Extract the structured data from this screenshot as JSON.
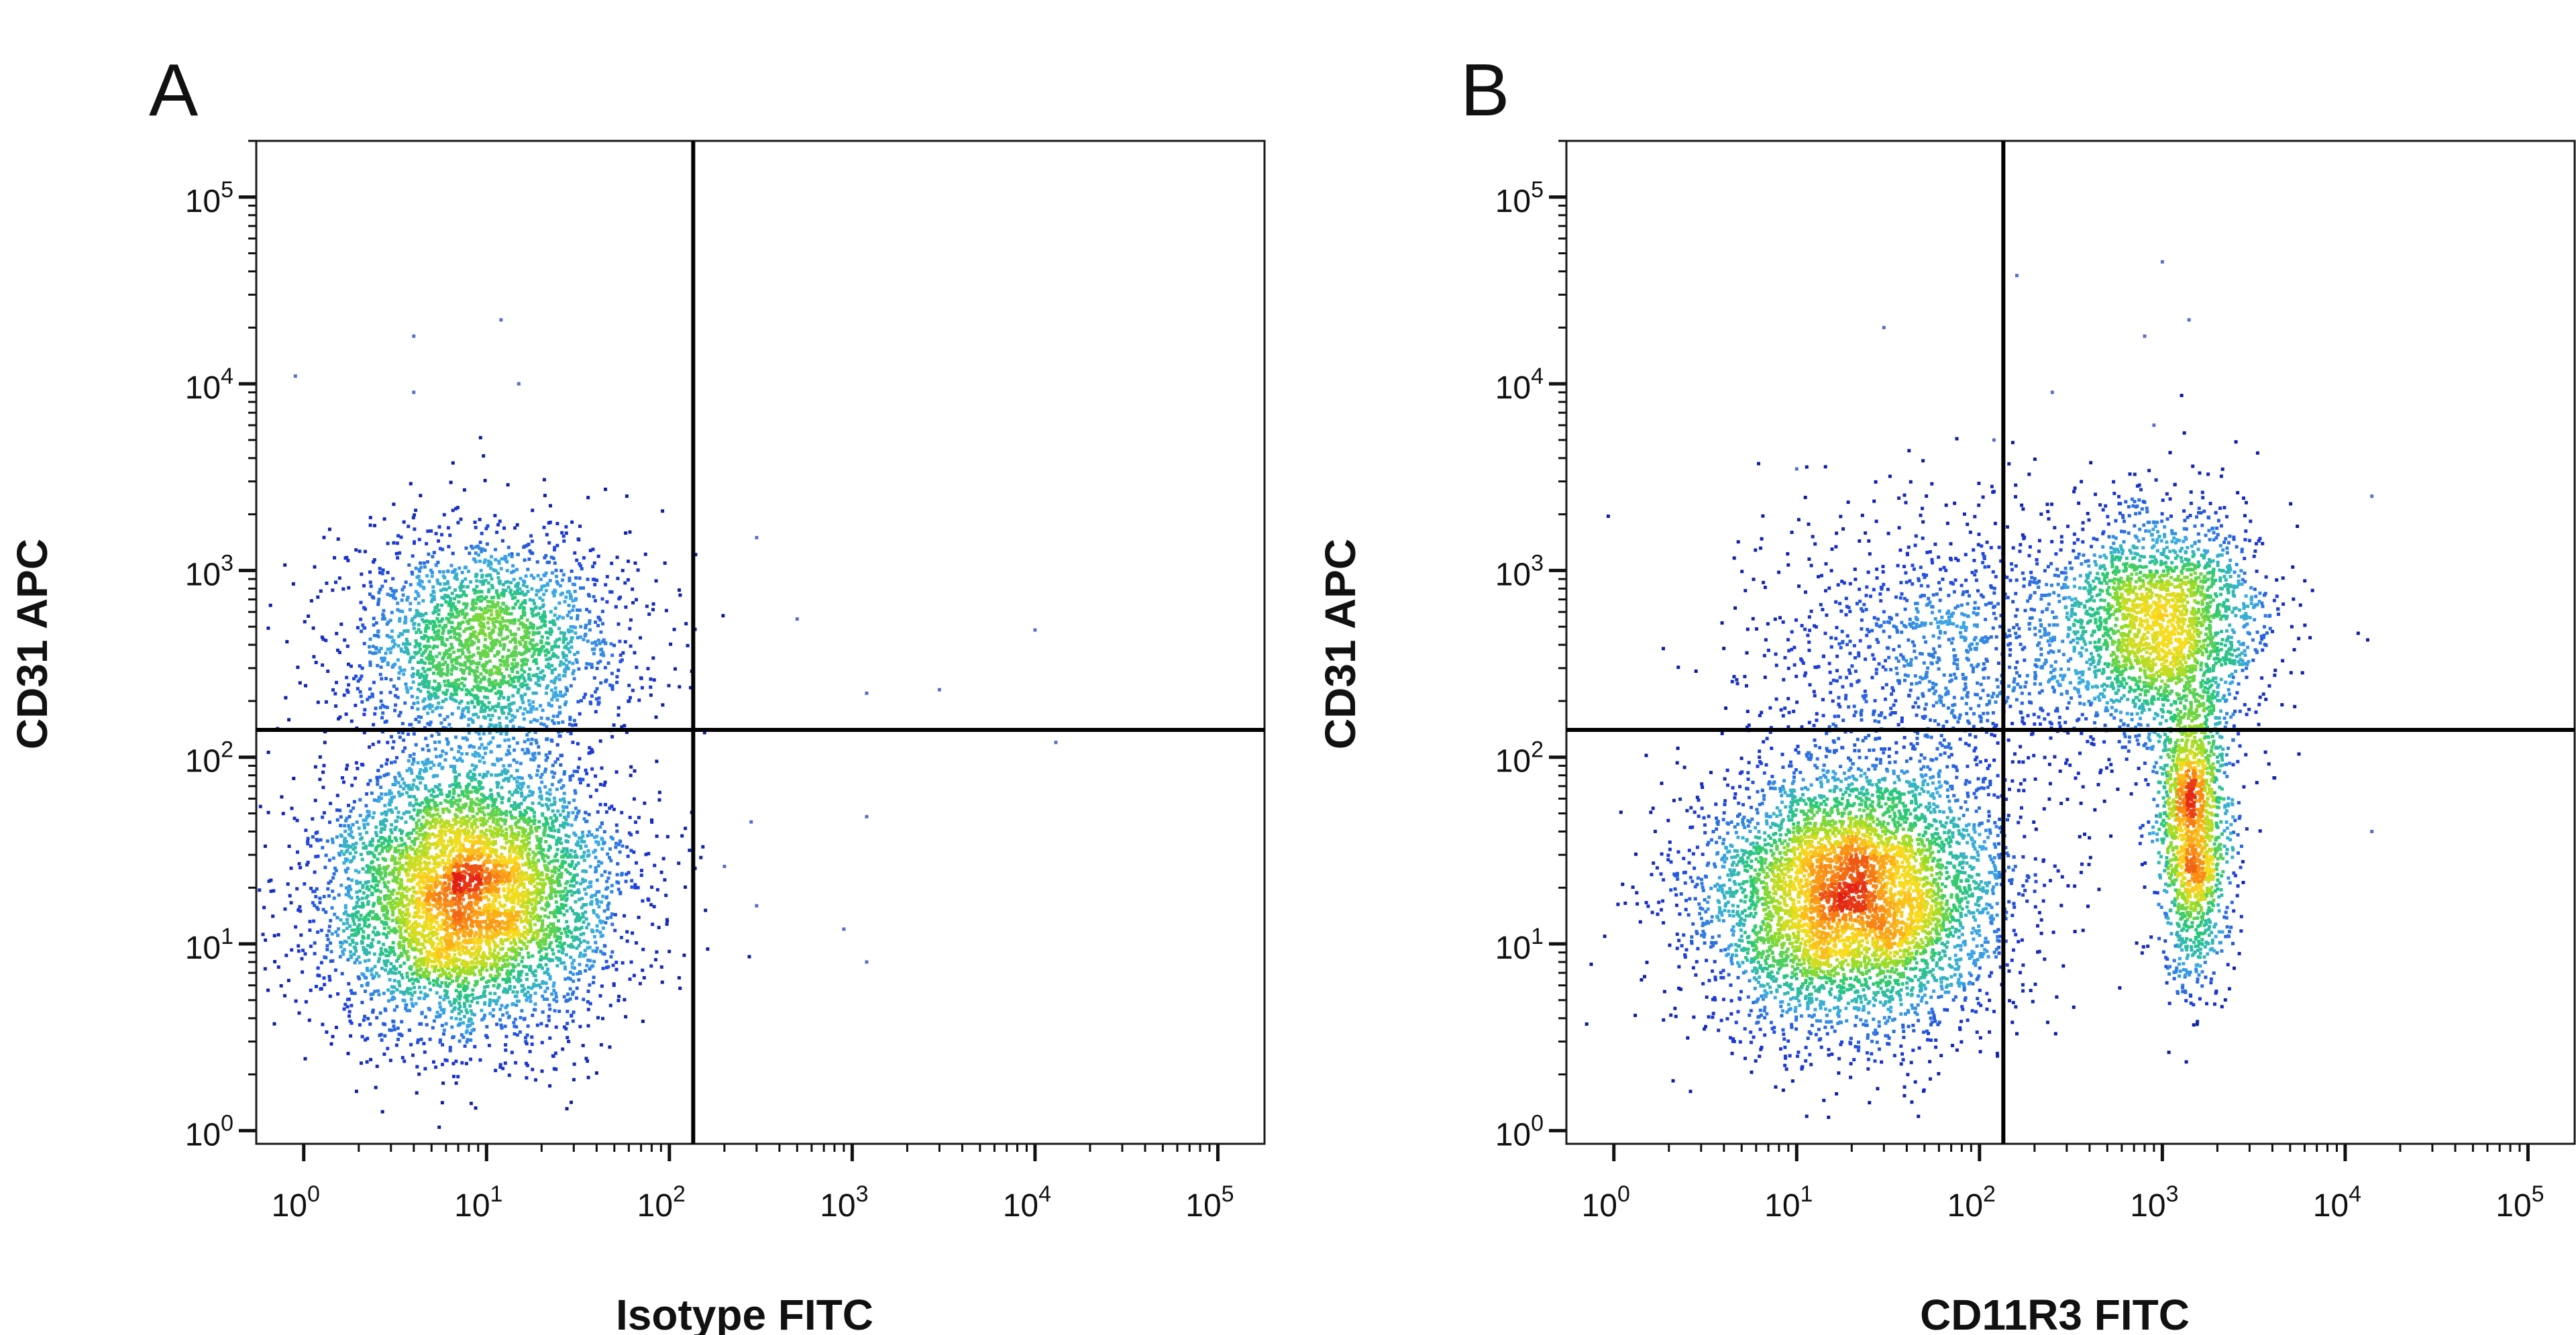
{
  "figure": {
    "panels": [
      {
        "letter": "A",
        "x_label": "Isotype FITC",
        "y_label": "CD31 APC"
      },
      {
        "letter": "B",
        "x_label": "CD11R3 FITC",
        "y_label": "CD31 APC"
      }
    ]
  },
  "chart_data": [
    {
      "type": "scatter",
      "panel": "A",
      "xlabel": "Isotype FITC",
      "ylabel": "CD31 APC",
      "xscale": "log",
      "yscale": "log",
      "xlim": [
        0.55,
        180000
      ],
      "ylim": [
        0.85,
        200000
      ],
      "x_ticks": [
        {
          "base": "10",
          "exp": "0",
          "value": 1
        },
        {
          "base": "10",
          "exp": "1",
          "value": 10
        },
        {
          "base": "10",
          "exp": "2",
          "value": 100
        },
        {
          "base": "10",
          "exp": "3",
          "value": 1000
        },
        {
          "base": "10",
          "exp": "4",
          "value": 10000
        },
        {
          "base": "10",
          "exp": "5",
          "value": 100000
        }
      ],
      "y_ticks": [
        {
          "base": "10",
          "exp": "0",
          "value": 1
        },
        {
          "base": "10",
          "exp": "1",
          "value": 10
        },
        {
          "base": "10",
          "exp": "2",
          "value": 100
        },
        {
          "base": "10",
          "exp": "3",
          "value": 1000
        },
        {
          "base": "10",
          "exp": "4",
          "value": 10000
        },
        {
          "base": "10",
          "exp": "5",
          "value": 100000
        }
      ],
      "quadrant_gates": {
        "x": 135,
        "y": 140
      },
      "color_scale": "density (blue-green-yellow-red)",
      "populations": [
        {
          "center_x": 8,
          "center_y": 18,
          "spread_x_decades": 0.4,
          "spread_y_decades": 0.38,
          "relative_size": 1.0
        },
        {
          "center_x": 10,
          "center_y": 420,
          "spread_x_decades": 0.38,
          "spread_y_decades": 0.3,
          "relative_size": 0.42
        }
      ],
      "outlier_points": [
        {
          "x": 12,
          "y": 22000
        },
        {
          "x": 4,
          "y": 18000
        },
        {
          "x": 15,
          "y": 10000
        },
        {
          "x": 0.9,
          "y": 11000
        },
        {
          "x": 4,
          "y": 9000
        },
        {
          "x": 300,
          "y": 1500
        },
        {
          "x": 500,
          "y": 550
        },
        {
          "x": 10000,
          "y": 480
        },
        {
          "x": 3000,
          "y": 230
        },
        {
          "x": 1200,
          "y": 220
        },
        {
          "x": 13000,
          "y": 120
        },
        {
          "x": 280,
          "y": 45
        },
        {
          "x": 1200,
          "y": 48
        },
        {
          "x": 300,
          "y": 16
        },
        {
          "x": 900,
          "y": 12
        },
        {
          "x": 1200,
          "y": 8
        },
        {
          "x": 200,
          "y": 26
        }
      ]
    },
    {
      "type": "scatter",
      "panel": "B",
      "xlabel": "CD11R3 FITC",
      "ylabel": "CD31 APC",
      "xscale": "log",
      "yscale": "log",
      "xlim": [
        0.55,
        180000
      ],
      "ylim": [
        0.85,
        200000
      ],
      "x_ticks": [
        {
          "base": "10",
          "exp": "0",
          "value": 1
        },
        {
          "base": "10",
          "exp": "1",
          "value": 10
        },
        {
          "base": "10",
          "exp": "2",
          "value": 100
        },
        {
          "base": "10",
          "exp": "3",
          "value": 1000
        },
        {
          "base": "10",
          "exp": "4",
          "value": 10000
        },
        {
          "base": "10",
          "exp": "5",
          "value": 100000
        }
      ],
      "y_ticks": [
        {
          "base": "10",
          "exp": "0",
          "value": 1
        },
        {
          "base": "10",
          "exp": "1",
          "value": 10
        },
        {
          "base": "10",
          "exp": "2",
          "value": 100
        },
        {
          "base": "10",
          "exp": "3",
          "value": 1000
        },
        {
          "base": "10",
          "exp": "4",
          "value": 10000
        },
        {
          "base": "10",
          "exp": "5",
          "value": 100000
        }
      ],
      "quadrant_gates": {
        "x": 135,
        "y": 140
      },
      "color_scale": "density (blue-green-yellow-red)",
      "populations": [
        {
          "center_x": 20,
          "center_y": 18,
          "spread_x_decades": 0.42,
          "spread_y_decades": 0.36,
          "relative_size": 1.0
        },
        {
          "center_x": 1000,
          "center_y": 500,
          "spread_x_decades": 0.28,
          "spread_y_decades": 0.3,
          "relative_size": 0.42
        },
        {
          "center_x": 1500,
          "center_y": 40,
          "spread_x_decades": 0.1,
          "spread_y_decades": 0.4,
          "relative_size": 0.3
        },
        {
          "center_x": 80,
          "center_y": 400,
          "spread_x_decades": 0.6,
          "spread_y_decades": 0.4,
          "relative_size": 0.25
        }
      ],
      "outlier_points": [
        {
          "x": 1000,
          "y": 45000
        },
        {
          "x": 160,
          "y": 38000
        },
        {
          "x": 30,
          "y": 20000
        },
        {
          "x": 800,
          "y": 18000
        },
        {
          "x": 1400,
          "y": 22000
        },
        {
          "x": 250,
          "y": 9000
        },
        {
          "x": 900,
          "y": 6000
        },
        {
          "x": 120,
          "y": 5000
        },
        {
          "x": 14000,
          "y": 2500
        },
        {
          "x": 14000,
          "y": 40
        },
        {
          "x": 10,
          "y": 3500
        }
      ]
    }
  ]
}
